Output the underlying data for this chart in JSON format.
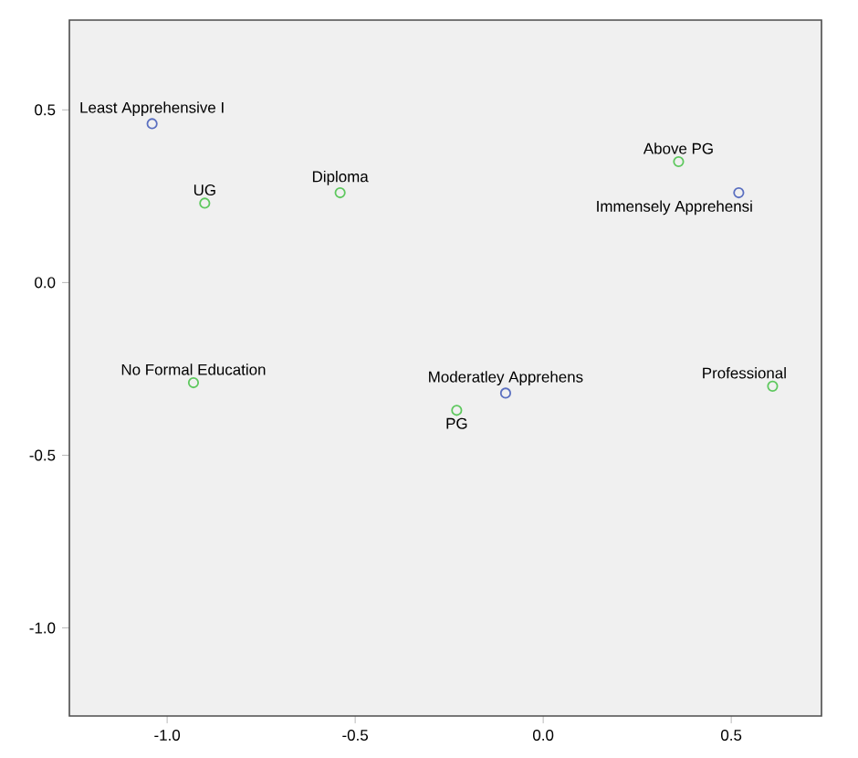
{
  "chart_data": {
    "type": "scatter",
    "marker": "circle",
    "grid": false,
    "xlim": [
      -1.26,
      0.74
    ],
    "ylim": [
      -1.255,
      0.76
    ],
    "xticks": [
      {
        "value": -1,
        "label": "-1.0"
      },
      {
        "value": -0.5,
        "label": "-0.5"
      },
      {
        "value": 0,
        "label": "0.0"
      },
      {
        "value": 0.5,
        "label": "0.5"
      }
    ],
    "yticks": [
      {
        "value": 0.5,
        "label": "0.5"
      },
      {
        "value": 0,
        "label": "0.0"
      },
      {
        "value": -0.5,
        "label": "-0.5"
      },
      {
        "value": -1,
        "label": "-1.0"
      }
    ],
    "series": [
      {
        "color": "#5a6fc0",
        "x": [
          -1.04,
          0.52,
          -0.1
        ],
        "values": [
          0.46,
          0.26,
          -0.32
        ]
      },
      {
        "color": "#5ec85e",
        "x": [
          -0.9,
          -0.54,
          0.36,
          -0.93,
          -0.23,
          0.61
        ],
        "values": [
          0.23,
          0.26,
          0.35,
          -0.29,
          -0.37,
          -0.3
        ]
      }
    ],
    "annotations": [
      {
        "text": "Least Apprehensive I",
        "x": -1.04,
        "y": 0.46
      },
      {
        "text": "Immensely Apprehensi",
        "x": 0.52,
        "y": 0.26
      },
      {
        "text": "Moderatley Apprehens",
        "x": -0.1,
        "y": -0.32
      },
      {
        "text": "UG",
        "x": -0.9,
        "y": 0.23
      },
      {
        "text": "Diploma",
        "x": -0.54,
        "y": 0.26
      },
      {
        "text": "Above PG",
        "x": 0.36,
        "y": 0.35
      },
      {
        "text": "No Formal Education",
        "x": -0.93,
        "y": -0.29
      },
      {
        "text": "PG",
        "x": -0.23,
        "y": -0.37
      },
      {
        "text": "Professional",
        "x": 0.61,
        "y": -0.3
      }
    ]
  }
}
